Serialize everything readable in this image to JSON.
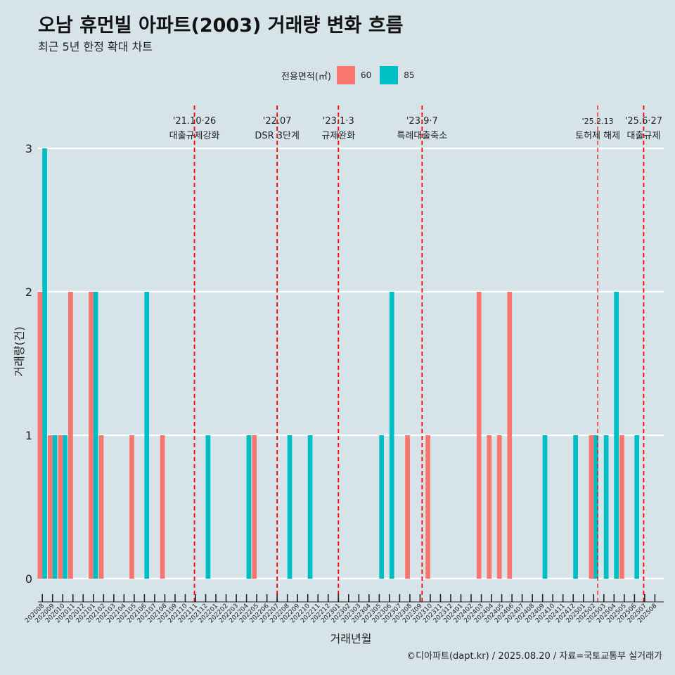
{
  "header": {
    "title": "오남 휴먼빌 아파트(2003) 거래량 변화 흐름",
    "subtitle": "최근 5년 한정 확대 차트"
  },
  "caption": "©디아파트(dapt.kr) / 2025.08.20 / 자료=국토교통부 실거래가",
  "colors": {
    "background": "#d6e4ea",
    "series_60": "#f8766d",
    "series_85": "#00bfc4",
    "event_line": "#ff0000",
    "grid": "#ffffff"
  },
  "chart_data": {
    "type": "bar",
    "title": "오남 휴먼빌 아파트(2003) 거래량 변화 흐름",
    "subtitle": "최근 5년 한정 확대 차트",
    "xlabel": "거래년월",
    "ylabel": "거래량(건)",
    "ylim": [
      0,
      3
    ],
    "yticks": [
      0,
      1,
      2,
      3
    ],
    "grid": true,
    "legend": {
      "title": "전용면적(㎡)",
      "position": "top"
    },
    "categories": [
      "202008",
      "202009",
      "202010",
      "202011",
      "202012",
      "202101",
      "202102",
      "202103",
      "202104",
      "202105",
      "202106",
      "202107",
      "202108",
      "202109",
      "202110",
      "202111",
      "202112",
      "202201",
      "202202",
      "202203",
      "202204",
      "202205",
      "202206",
      "202207",
      "202208",
      "202209",
      "202210",
      "202211",
      "202212",
      "202301",
      "202302",
      "202303",
      "202304",
      "202305",
      "202306",
      "202307",
      "202308",
      "202309",
      "202310",
      "202311",
      "202312",
      "202401",
      "202402",
      "202403",
      "202404",
      "202405",
      "202406",
      "202407",
      "202408",
      "202409",
      "202410",
      "202411",
      "202412",
      "202501",
      "202502",
      "202503",
      "202504",
      "202505",
      "202506",
      "202507",
      "202508"
    ],
    "series": [
      {
        "name": "60",
        "color": "#f8766d",
        "values": [
          2,
          1,
          1,
          2,
          0,
          2,
          1,
          0,
          0,
          1,
          0,
          0,
          1,
          0,
          0,
          0,
          0,
          0,
          0,
          0,
          0,
          1,
          0,
          0,
          0,
          0,
          0,
          0,
          0,
          0,
          0,
          0,
          0,
          0,
          0,
          0,
          1,
          0,
          1,
          0,
          0,
          0,
          0,
          2,
          1,
          1,
          2,
          0,
          0,
          0,
          0,
          0,
          0,
          0,
          1,
          0,
          0,
          1,
          0,
          0,
          0
        ]
      },
      {
        "name": "85",
        "color": "#00bfc4",
        "values": [
          3,
          1,
          1,
          0,
          0,
          2,
          0,
          0,
          0,
          0,
          2,
          0,
          0,
          0,
          0,
          0,
          1,
          0,
          0,
          0,
          1,
          0,
          0,
          0,
          1,
          0,
          1,
          0,
          0,
          0,
          0,
          0,
          0,
          1,
          2,
          0,
          0,
          0,
          0,
          0,
          0,
          0,
          0,
          0,
          0,
          0,
          0,
          0,
          0,
          1,
          0,
          0,
          1,
          0,
          1,
          1,
          2,
          0,
          1,
          0,
          0
        ]
      }
    ],
    "events": [
      {
        "date": "'21.10·26",
        "label": "대출규제강화",
        "x": 202110.9
      },
      {
        "date": "'22.07",
        "label": "DSR 3단계",
        "x": 202207.0
      },
      {
        "date": "'23.1·3",
        "label": "규제완화",
        "x": 202301.0
      },
      {
        "date": "'23.9·7",
        "label": "특례대출축소",
        "x": 202309.2
      },
      {
        "date": "'25.2.13",
        "label": "토허제 해제",
        "x": 202502.4
      },
      {
        "date": "'25.6·27",
        "label": "대출규제",
        "x": 202506.9
      }
    ]
  }
}
